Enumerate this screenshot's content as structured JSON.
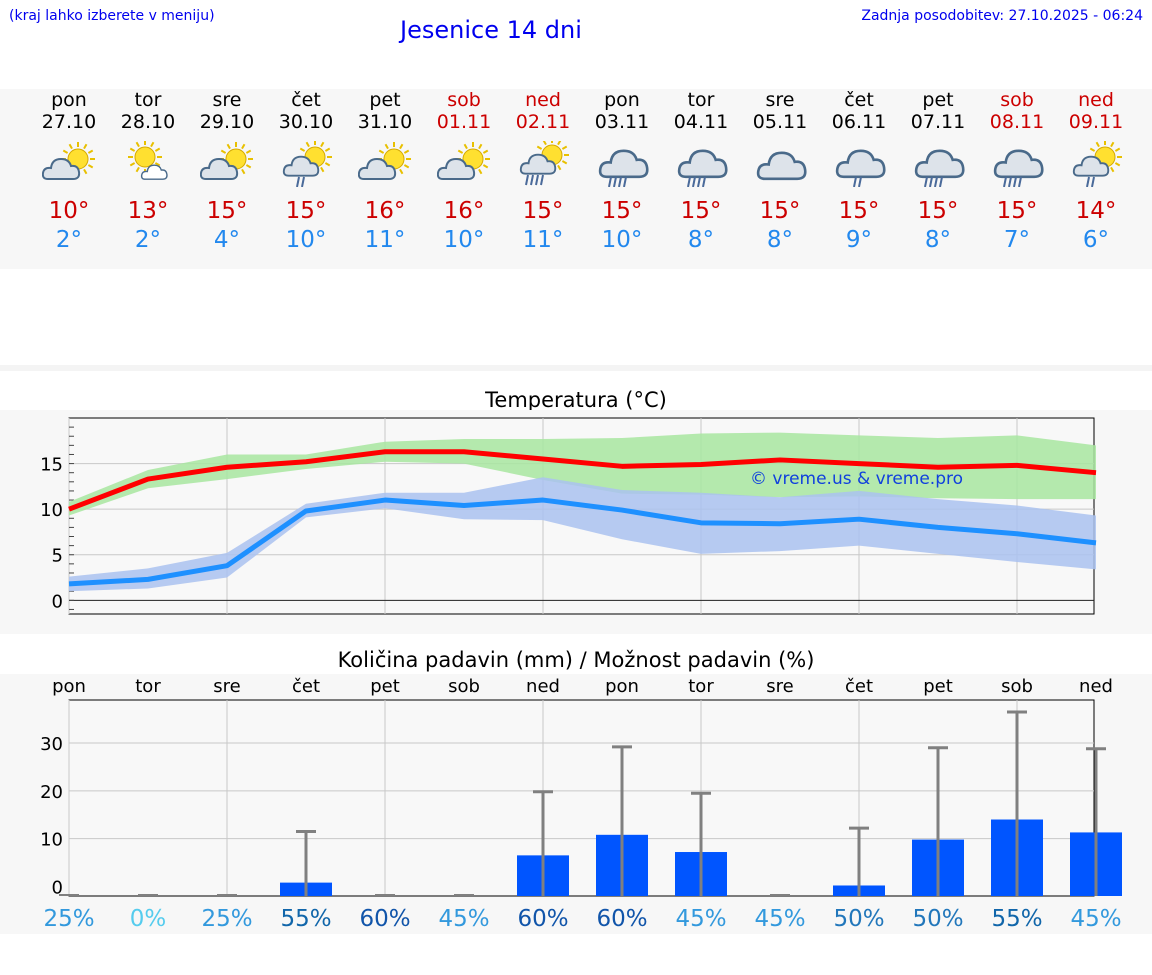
{
  "header": {
    "left_note": "(kraj lahko izberete v meniju)",
    "title": "Jesenice 14 dni",
    "updated": "Zadnja posodobitev: 27.10.2025 - 06:24"
  },
  "forecast": [
    {
      "day": "pon",
      "date": "27.10",
      "hi": "10°",
      "lo": "2°",
      "icon": "partly-cloudy-sun-icon",
      "weekend": false
    },
    {
      "day": "tor",
      "date": "28.10",
      "hi": "13°",
      "lo": "2°",
      "icon": "sun-small-cloud-icon",
      "weekend": false
    },
    {
      "day": "sre",
      "date": "29.10",
      "hi": "15°",
      "lo": "4°",
      "icon": "partly-cloudy-sun-icon",
      "weekend": false
    },
    {
      "day": "čet",
      "date": "30.10",
      "hi": "15°",
      "lo": "10°",
      "icon": "sun-cloud-light-rain-icon",
      "weekend": false
    },
    {
      "day": "pet",
      "date": "31.10",
      "hi": "16°",
      "lo": "11°",
      "icon": "partly-cloudy-sun-icon",
      "weekend": false
    },
    {
      "day": "sob",
      "date": "01.11",
      "hi": "16°",
      "lo": "10°",
      "icon": "partly-cloudy-sun-icon",
      "weekend": true
    },
    {
      "day": "ned",
      "date": "02.11",
      "hi": "15°",
      "lo": "11°",
      "icon": "sun-cloud-rain-icon",
      "weekend": true
    },
    {
      "day": "pon",
      "date": "03.11",
      "hi": "15°",
      "lo": "10°",
      "icon": "cloud-rain-icon",
      "weekend": false
    },
    {
      "day": "tor",
      "date": "04.11",
      "hi": "15°",
      "lo": "8°",
      "icon": "cloud-rain-icon",
      "weekend": false
    },
    {
      "day": "sre",
      "date": "05.11",
      "hi": "15°",
      "lo": "8°",
      "icon": "cloud-icon",
      "weekend": false
    },
    {
      "day": "čet",
      "date": "06.11",
      "hi": "15°",
      "lo": "9°",
      "icon": "cloud-light-rain-icon",
      "weekend": false
    },
    {
      "day": "pet",
      "date": "07.11",
      "hi": "15°",
      "lo": "8°",
      "icon": "cloud-rain-icon",
      "weekend": false
    },
    {
      "day": "sob",
      "date": "08.11",
      "hi": "15°",
      "lo": "7°",
      "icon": "cloud-rain-icon",
      "weekend": true
    },
    {
      "day": "ned",
      "date": "09.11",
      "hi": "14°",
      "lo": "6°",
      "icon": "sun-cloud-light-rain-icon",
      "weekend": true
    }
  ],
  "chart_data": [
    {
      "type": "line",
      "title": "Temperatura (°C)",
      "watermark": "© vreme.us & vreme.pro",
      "x": [
        0,
        1,
        2,
        3,
        4,
        5,
        6,
        7,
        8,
        9,
        10,
        11,
        12,
        13
      ],
      "yticks": [
        0,
        5,
        10,
        15
      ],
      "ylim": [
        -1.5,
        20
      ],
      "grid": true,
      "series": [
        {
          "color": "#ff0000",
          "values": [
            10,
            13.3,
            14.6,
            15.2,
            16.3,
            16.3,
            15.5,
            14.7,
            14.9,
            15.4,
            15,
            14.6,
            14.8,
            14
          ],
          "band_low": [
            9.3,
            12.3,
            13.3,
            14.4,
            15.2,
            15,
            13.2,
            11.7,
            11.6,
            11.3,
            11.4,
            11.2,
            11.1,
            11.1
          ],
          "band_high": [
            10.8,
            14.3,
            16,
            16,
            17.4,
            17.7,
            17.7,
            17.8,
            18.3,
            18.4,
            18.1,
            17.8,
            18.1,
            17
          ],
          "band_color": "#a8e6a0"
        },
        {
          "color": "#1e90ff",
          "values": [
            1.8,
            2.3,
            3.8,
            9.8,
            11,
            10.4,
            11,
            9.9,
            8.5,
            8.4,
            8.9,
            8,
            7.3,
            6.3
          ],
          "band_low": [
            1,
            1.3,
            2.5,
            9.1,
            10.1,
            8.9,
            8.8,
            6.7,
            5.1,
            5.4,
            6,
            5.1,
            4.2,
            3.4
          ],
          "band_high": [
            2.6,
            3.5,
            5.2,
            10.6,
            11.8,
            11.8,
            13.5,
            12.1,
            11.8,
            11.3,
            12,
            11.1,
            10.4,
            9.3
          ],
          "band_color": "#aac2f0"
        }
      ]
    },
    {
      "type": "bar",
      "title": "Količina padavin (mm) / Možnost padavin (%)",
      "categories": [
        "pon",
        "tor",
        "sre",
        "čet",
        "pet",
        "sob",
        "ned",
        "pon",
        "tor",
        "sre",
        "čet",
        "pet",
        "sob",
        "ned"
      ],
      "yticks": [
        0,
        10,
        20,
        30
      ],
      "ylim": [
        -2,
        39
      ],
      "values": [
        0,
        0,
        0,
        0.8,
        0,
        0,
        6.5,
        10.8,
        7.2,
        0,
        0.2,
        9.8,
        14,
        11.3
      ],
      "error_high": [
        0,
        0,
        0,
        11.5,
        0,
        0,
        19.8,
        29.2,
        19.5,
        0,
        12.2,
        29,
        36.5,
        28.8
      ],
      "bar_color": "#0055ff",
      "whisker_color": "#808080",
      "chance": [
        "25%",
        "0%",
        "25%",
        "55%",
        "60%",
        "45%",
        "60%",
        "60%",
        "45%",
        "45%",
        "50%",
        "50%",
        "55%",
        "45%"
      ],
      "chance_colors": [
        "#3399dd",
        "#55ccee",
        "#3399dd",
        "#1166aa",
        "#1155aa",
        "#3399dd",
        "#1155aa",
        "#1155aa",
        "#3399dd",
        "#3399dd",
        "#2277bb",
        "#2277bb",
        "#1166aa",
        "#3399dd"
      ]
    }
  ]
}
